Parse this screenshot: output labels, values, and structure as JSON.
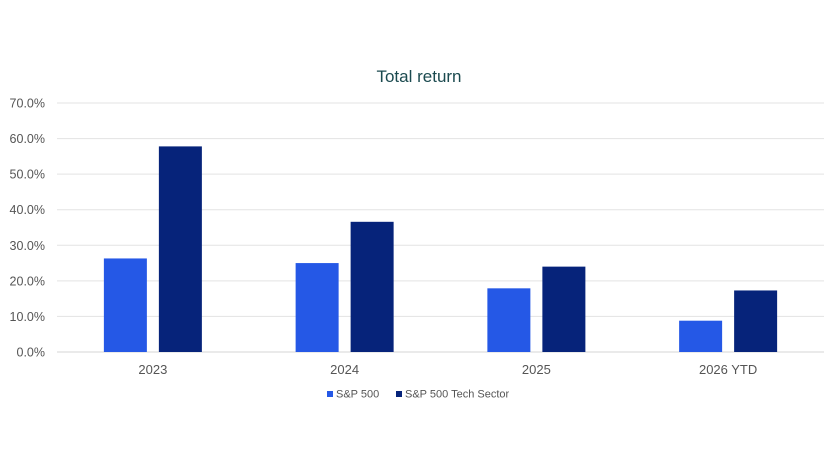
{
  "chart_data": {
    "type": "bar",
    "title": "Total return",
    "categories": [
      "2023",
      "2024",
      "2025",
      "2026 YTD"
    ],
    "series": [
      {
        "name": "S&P 500",
        "color": "#2558e6",
        "values": [
          26.3,
          25.0,
          17.9,
          8.8
        ]
      },
      {
        "name": "S&P 500 Tech Sector",
        "color": "#06237a",
        "values": [
          57.8,
          36.6,
          24.0,
          17.3
        ]
      }
    ],
    "y_ticks": [
      "0.0%",
      "10.0%",
      "20.0%",
      "30.0%",
      "40.0%",
      "50.0%",
      "60.0%",
      "70.0%"
    ],
    "ylim": [
      0,
      70
    ],
    "grid": true,
    "legend_position": "bottom"
  }
}
